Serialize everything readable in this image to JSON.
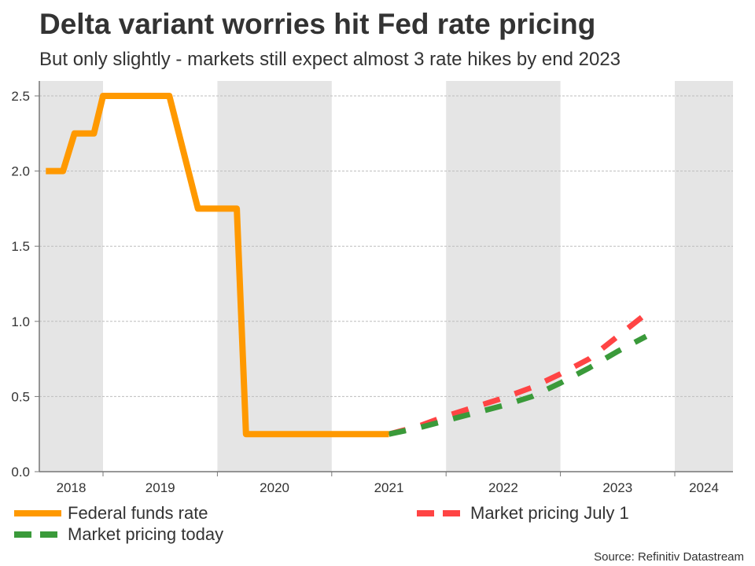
{
  "title": "Delta variant worries hit Fed rate pricing",
  "subtitle": "But only slightly - markets still expect almost 3 rate hikes by end 2023",
  "source": "Source: Refinitiv Datastream",
  "chart_data": {
    "type": "line",
    "title": "Delta variant worries hit Fed rate pricing",
    "subtitle": "But only slightly - markets still expect almost 3 rate hikes by end 2023",
    "xlabel": "",
    "ylabel": "",
    "xlim": [
      2018.45,
      2024.5
    ],
    "ylim": [
      0,
      2.6
    ],
    "yticks": [
      0.0,
      0.5,
      1.0,
      1.5,
      2.0,
      2.5
    ],
    "ytick_labels": [
      "0.0",
      "0.5",
      "1.0",
      "1.5",
      "2.0",
      "2.5"
    ],
    "xtick_labels": [
      "2018",
      "2019",
      "2020",
      "2021",
      "2022",
      "2023",
      "2024"
    ],
    "shaded_years": [
      "2018",
      "2020",
      "2022",
      "2024"
    ],
    "grid": true,
    "legend": "bottom",
    "series": [
      {
        "name": "Federal funds rate",
        "color": "#FF9900",
        "style": "solid",
        "points": [
          [
            2018.5,
            2.0
          ],
          [
            2018.65,
            2.0
          ],
          [
            2018.75,
            2.25
          ],
          [
            2018.92,
            2.25
          ],
          [
            2019.0,
            2.5
          ],
          [
            2019.58,
            2.5
          ],
          [
            2019.83,
            1.75
          ],
          [
            2020.17,
            1.75
          ],
          [
            2020.25,
            0.25
          ],
          [
            2021.5,
            0.25
          ]
        ]
      },
      {
        "name": "Market pricing July 1",
        "color": "#FF4444",
        "style": "dashed",
        "points": [
          [
            2021.5,
            0.25
          ],
          [
            2021.75,
            0.3
          ],
          [
            2022.0,
            0.37
          ],
          [
            2022.25,
            0.43
          ],
          [
            2022.5,
            0.49
          ],
          [
            2022.75,
            0.56
          ],
          [
            2023.0,
            0.65
          ],
          [
            2023.25,
            0.75
          ],
          [
            2023.5,
            0.9
          ],
          [
            2023.75,
            1.05
          ]
        ]
      },
      {
        "name": "Market pricing today",
        "color": "#3A9A3A",
        "style": "dashed",
        "points": [
          [
            2021.5,
            0.25
          ],
          [
            2021.75,
            0.29
          ],
          [
            2022.0,
            0.34
          ],
          [
            2022.25,
            0.39
          ],
          [
            2022.5,
            0.44
          ],
          [
            2022.75,
            0.5
          ],
          [
            2023.0,
            0.59
          ],
          [
            2023.25,
            0.69
          ],
          [
            2023.5,
            0.8
          ],
          [
            2023.75,
            0.9
          ]
        ]
      }
    ]
  },
  "legend": {
    "fed": "Federal funds rate",
    "july": "Market pricing July 1",
    "today": "Market pricing today"
  }
}
